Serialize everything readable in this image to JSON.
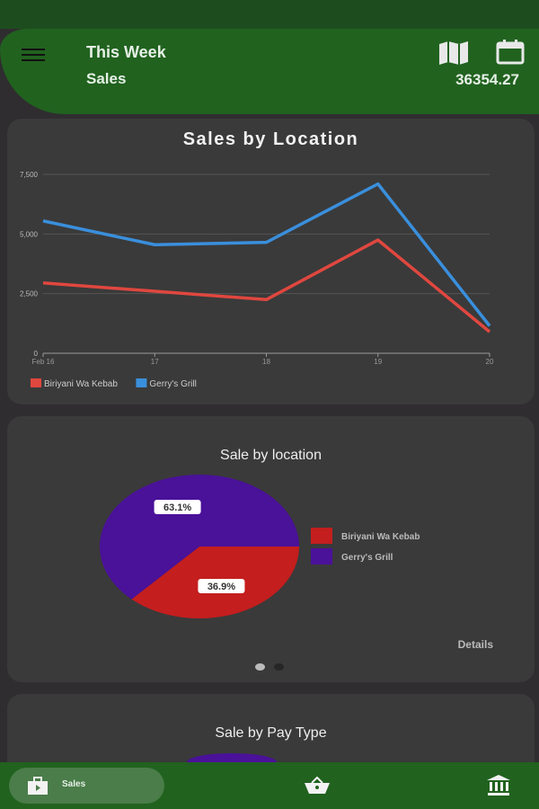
{
  "header": {
    "title": "This Week",
    "subtitle": "Sales",
    "total": "36354.27"
  },
  "colors": {
    "header": "#21621f",
    "red": "#e0473f",
    "blue": "#3a8fdc",
    "pie_red": "#c41e1e",
    "pie_purple": "#4a1199"
  },
  "line_card": {
    "title": "Sales by Location"
  },
  "pie_card": {
    "title": "Sale by location",
    "details": "Details"
  },
  "pay_card": {
    "title": "Sale by Pay Type"
  },
  "nav": {
    "sales": "Sales"
  },
  "chart_data": [
    {
      "type": "line",
      "title": "Sales by Location",
      "categories": [
        "Feb 16",
        "17",
        "18",
        "19",
        "20"
      ],
      "yticks": [
        "0",
        "2,500",
        "5,000",
        "7,500"
      ],
      "ylim": [
        0,
        7500
      ],
      "legend": "bottom-left",
      "series": [
        {
          "name": "Biriyani Wa Kebab",
          "color": "#e0473f",
          "values": [
            2950,
            2600,
            2250,
            4750,
            900
          ]
        },
        {
          "name": "Gerry's Grill",
          "color": "#3a8fdc",
          "values": [
            5550,
            4550,
            4650,
            7100,
            1150
          ]
        }
      ]
    },
    {
      "type": "pie",
      "title": "Sale by location",
      "slices": [
        {
          "name": "Biriyani Wa Kebab",
          "value": 36.9,
          "label": "36.9%",
          "color": "#c41e1e"
        },
        {
          "name": "Gerry's Grill",
          "value": 63.1,
          "label": "63.1%",
          "color": "#4a1199"
        }
      ]
    }
  ]
}
